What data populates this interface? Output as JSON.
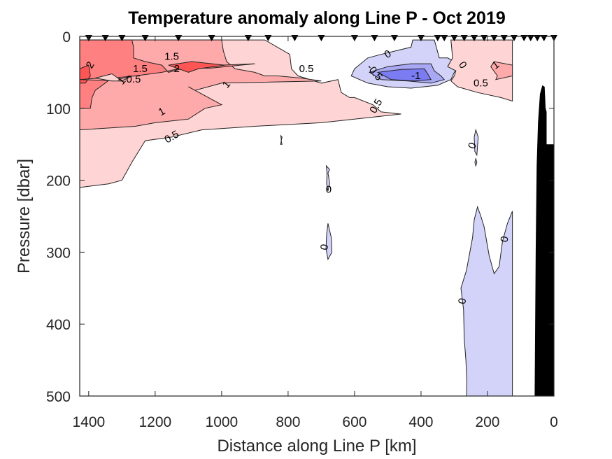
{
  "chart_data": {
    "type": "contourf",
    "title": "Temperature anomaly along Line P - Oct 2019",
    "xlabel": "Distance along Line P [km]",
    "ylabel": "Pressure [dbar]",
    "xlim": [
      1427,
      0
    ],
    "ylim": [
      500,
      0
    ],
    "x_reversed": true,
    "y_reversed": true,
    "xticks": [
      1400,
      1200,
      1000,
      800,
      600,
      400,
      200,
      0
    ],
    "xtick_labels": [
      "1400",
      "1200",
      "1000",
      "800",
      "600",
      "400",
      "200",
      "0"
    ],
    "yticks": [
      0,
      100,
      200,
      300,
      400,
      500
    ],
    "ytick_labels": [
      "0",
      "100",
      "200",
      "300",
      "400",
      "500"
    ],
    "grid": false,
    "contour_levels": [
      -1,
      -0.5,
      0,
      0.5,
      1,
      1.5,
      2
    ],
    "level_colors": {
      "-1": "#7b7bf2",
      "-0.5": "#a8a8f5",
      "0": "#d3d3fa",
      "0.5": "#ffd4d4",
      "1": "#ffaaaa",
      "1.5": "#ff8080",
      "2": "#ff5555"
    },
    "station_distances_km": [
      1400,
      1350,
      1300,
      1230,
      1130,
      1030,
      920,
      860,
      780,
      700,
      600,
      540,
      480,
      400,
      350,
      330,
      300,
      270,
      240,
      210,
      180,
      150,
      120,
      90,
      70,
      50,
      30,
      0
    ],
    "regions": [
      {
        "level": 0.5,
        "polygon": [
          [
            1427,
            5
          ],
          [
            870,
            5
          ],
          [
            795,
            25
          ],
          [
            790,
            45
          ],
          [
            770,
            55
          ],
          [
            700,
            65
          ],
          [
            650,
            60
          ],
          [
            640,
            78
          ],
          [
            615,
            85
          ],
          [
            600,
            85
          ],
          [
            545,
            95
          ],
          [
            520,
            105
          ],
          [
            460,
            108
          ],
          [
            600,
            115
          ],
          [
            700,
            120
          ],
          [
            900,
            125
          ],
          [
            1060,
            130
          ],
          [
            1150,
            140
          ],
          [
            1230,
            145
          ],
          [
            1270,
            175
          ],
          [
            1300,
            200
          ],
          [
            1340,
            205
          ],
          [
            1427,
            210
          ]
        ]
      },
      {
        "level": 1,
        "polygon": [
          [
            1427,
            5
          ],
          [
            1000,
            5
          ],
          [
            995,
            20
          ],
          [
            985,
            35
          ],
          [
            960,
            45
          ],
          [
            900,
            50
          ],
          [
            870,
            55
          ],
          [
            830,
            55
          ],
          [
            760,
            58
          ],
          [
            700,
            62
          ],
          [
            1000,
            65
          ],
          [
            1080,
            75
          ],
          [
            1100,
            70
          ],
          [
            1000,
            95
          ],
          [
            1050,
            100
          ],
          [
            1100,
            115
          ],
          [
            1200,
            120
          ],
          [
            1260,
            125
          ],
          [
            1427,
            130
          ]
        ]
      },
      {
        "level": 1.5,
        "polygon": [
          [
            1427,
            5
          ],
          [
            1270,
            5
          ],
          [
            1265,
            15
          ],
          [
            1265,
            30
          ],
          [
            1230,
            35
          ],
          [
            1180,
            40
          ],
          [
            1160,
            50
          ],
          [
            1120,
            45
          ],
          [
            1000,
            40
          ],
          [
            900,
            38
          ],
          [
            1030,
            44
          ],
          [
            1130,
            45
          ],
          [
            1180,
            50
          ],
          [
            1260,
            55
          ],
          [
            1330,
            58
          ],
          [
            1380,
            75
          ],
          [
            1390,
            85
          ],
          [
            1395,
            100
          ],
          [
            1427,
            100
          ]
        ]
      },
      {
        "level": 2,
        "polygon": [
          [
            1427,
            45
          ],
          [
            1400,
            40
          ],
          [
            1395,
            55
          ],
          [
            1410,
            65
          ],
          [
            1427,
            65
          ]
        ]
      },
      {
        "level": 2,
        "polygon": [
          [
            1160,
            40
          ],
          [
            1090,
            35
          ],
          [
            990,
            40
          ],
          [
            1070,
            45
          ],
          [
            1100,
            50
          ]
        ]
      },
      {
        "level": 1,
        "polygon": [
          [
            1427,
            60
          ],
          [
            1370,
            58
          ],
          [
            1330,
            62
          ],
          [
            1270,
            55
          ],
          [
            1300,
            62
          ],
          [
            1427,
            60
          ]
        ]
      },
      {
        "level": 0.5,
        "polygon": [
          [
            1380,
            58
          ],
          [
            1330,
            52
          ],
          [
            1300,
            62
          ],
          [
            1330,
            62
          ]
        ]
      },
      {
        "level": 0,
        "polygon": [
          [
            600,
            45
          ],
          [
            560,
            30
          ],
          [
            520,
            25
          ],
          [
            430,
            15
          ],
          [
            425,
            5
          ],
          [
            360,
            5
          ],
          [
            345,
            30
          ],
          [
            320,
            30
          ],
          [
            300,
            35
          ],
          [
            290,
            45
          ],
          [
            300,
            50
          ],
          [
            310,
            60
          ],
          [
            350,
            68
          ],
          [
            430,
            72
          ],
          [
            500,
            70
          ],
          [
            560,
            65
          ],
          [
            610,
            55
          ]
        ]
      },
      {
        "level": -0.5,
        "polygon": [
          [
            555,
            50
          ],
          [
            500,
            42
          ],
          [
            430,
            38
          ],
          [
            370,
            38
          ],
          [
            360,
            48
          ],
          [
            340,
            55
          ],
          [
            330,
            60
          ],
          [
            370,
            65
          ],
          [
            440,
            62
          ],
          [
            520,
            60
          ]
        ]
      },
      {
        "level": -1,
        "polygon": [
          [
            530,
            50
          ],
          [
            460,
            46
          ],
          [
            390,
            45
          ],
          [
            380,
            52
          ],
          [
            370,
            60
          ],
          [
            420,
            62
          ],
          [
            490,
            60
          ]
        ]
      },
      {
        "level": 0.5,
        "polygon": [
          [
            310,
            5
          ],
          [
            125,
            5
          ],
          [
            125,
            90
          ],
          [
            160,
            85
          ],
          [
            230,
            78
          ],
          [
            290,
            70
          ],
          [
            310,
            62
          ],
          [
            300,
            55
          ],
          [
            295,
            48
          ],
          [
            320,
            42
          ],
          [
            305,
            30
          ]
        ]
      },
      {
        "level": 1,
        "polygon": [
          [
            125,
            40
          ],
          [
            180,
            35
          ],
          [
            190,
            42
          ],
          [
            170,
            55
          ],
          [
            175,
            60
          ],
          [
            125,
            55
          ]
        ]
      },
      {
        "level": 0,
        "polygon": [
          [
            822,
            138
          ],
          [
            818,
            140
          ],
          [
            821,
            145
          ],
          [
            818,
            150
          ],
          [
            823,
            150
          ],
          [
            820,
            145
          ]
        ]
      },
      {
        "level": 0,
        "polygon": [
          [
            685,
            180
          ],
          [
            675,
            185
          ],
          [
            680,
            190
          ],
          [
            678,
            195
          ],
          [
            675,
            205
          ],
          [
            680,
            215
          ],
          [
            684,
            205
          ],
          [
            683,
            190
          ]
        ]
      },
      {
        "level": 0,
        "polygon": [
          [
            680,
            260
          ],
          [
            670,
            280
          ],
          [
            668,
            300
          ],
          [
            680,
            310
          ],
          [
            686,
            295
          ],
          [
            684,
            275
          ]
        ]
      },
      {
        "level": 0,
        "polygon": [
          [
            235,
            130
          ],
          [
            228,
            140
          ],
          [
            232,
            165
          ],
          [
            238,
            160
          ],
          [
            240,
            140
          ]
        ]
      },
      {
        "level": 0,
        "polygon": [
          [
            235,
            170
          ],
          [
            232,
            175
          ],
          [
            235,
            180
          ],
          [
            238,
            175
          ]
        ]
      },
      {
        "level": 0,
        "polygon": [
          [
            230,
            237
          ],
          [
            240,
            255
          ],
          [
            245,
            280
          ],
          [
            255,
            305
          ],
          [
            263,
            325
          ],
          [
            280,
            350
          ],
          [
            272,
            380
          ],
          [
            270,
            420
          ],
          [
            265,
            450
          ],
          [
            262,
            480
          ],
          [
            263,
            500
          ],
          [
            125,
            500
          ],
          [
            125,
            243
          ],
          [
            140,
            260
          ],
          [
            155,
            285
          ],
          [
            165,
            320
          ],
          [
            180,
            330
          ],
          [
            195,
            305
          ],
          [
            210,
            265
          ],
          [
            220,
            250
          ]
        ]
      }
    ],
    "contour_labels": [
      {
        "text": "2",
        "x": 1395,
        "y": 40,
        "angle": -60
      },
      {
        "text": "1.5",
        "x": 1150,
        "y": 28,
        "angle": 0
      },
      {
        "text": "1.5",
        "x": 1245,
        "y": 45,
        "angle": 0
      },
      {
        "text": "2",
        "x": 1135,
        "y": 45,
        "angle": 0
      },
      {
        "text": "1",
        "x": 1300,
        "y": 62,
        "angle": -50
      },
      {
        "text": "0.5",
        "x": 1265,
        "y": 60,
        "angle": 0
      },
      {
        "text": "1",
        "x": 985,
        "y": 67,
        "angle": -50
      },
      {
        "text": "0.5",
        "x": 745,
        "y": 45,
        "angle": 0
      },
      {
        "text": "1",
        "x": 1180,
        "y": 105,
        "angle": -30
      },
      {
        "text": "0.5",
        "x": 1150,
        "y": 140,
        "angle": -30
      },
      {
        "text": "0.5",
        "x": 535,
        "y": 97,
        "angle": -60
      },
      {
        "text": "0",
        "x": 500,
        "y": 25,
        "angle": -30
      },
      {
        "text": "-0.5",
        "x": 540,
        "y": 50,
        "angle": 50
      },
      {
        "text": "-1",
        "x": 415,
        "y": 55,
        "angle": 0
      },
      {
        "text": "0",
        "x": 275,
        "y": 40,
        "angle": 55
      },
      {
        "text": "1",
        "x": 175,
        "y": 40,
        "angle": -35
      },
      {
        "text": "0.5",
        "x": 220,
        "y": 65,
        "angle": 0
      },
      {
        "text": "0",
        "x": 678,
        "y": 213,
        "angle": 0
      },
      {
        "text": "0",
        "x": 690,
        "y": 293,
        "angle": -80
      },
      {
        "text": "0",
        "x": 245,
        "y": 152,
        "angle": -70
      },
      {
        "text": "0",
        "x": 148,
        "y": 282,
        "angle": -80
      },
      {
        "text": "0",
        "x": 275,
        "y": 368,
        "angle": -80
      }
    ],
    "bathymetry": {
      "color": "#000000",
      "polygon": [
        [
          58,
          500
        ],
        [
          55,
          300
        ],
        [
          52,
          180
        ],
        [
          48,
          120
        ],
        [
          42,
          80
        ],
        [
          35,
          68
        ],
        [
          28,
          70
        ],
        [
          25,
          100
        ],
        [
          22,
          105
        ],
        [
          22,
          150
        ],
        [
          0,
          150
        ],
        [
          0,
          500
        ]
      ]
    }
  }
}
